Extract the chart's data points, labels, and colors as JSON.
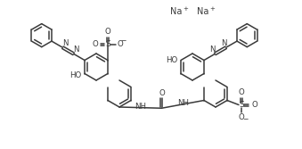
{
  "bg": "#ffffff",
  "lc": "#3a3a3a",
  "lw": 1.1,
  "fig_w": 3.39,
  "fig_h": 1.67,
  "dpi": 100,
  "na1": [
    198,
    13
  ],
  "na2": [
    228,
    13
  ]
}
